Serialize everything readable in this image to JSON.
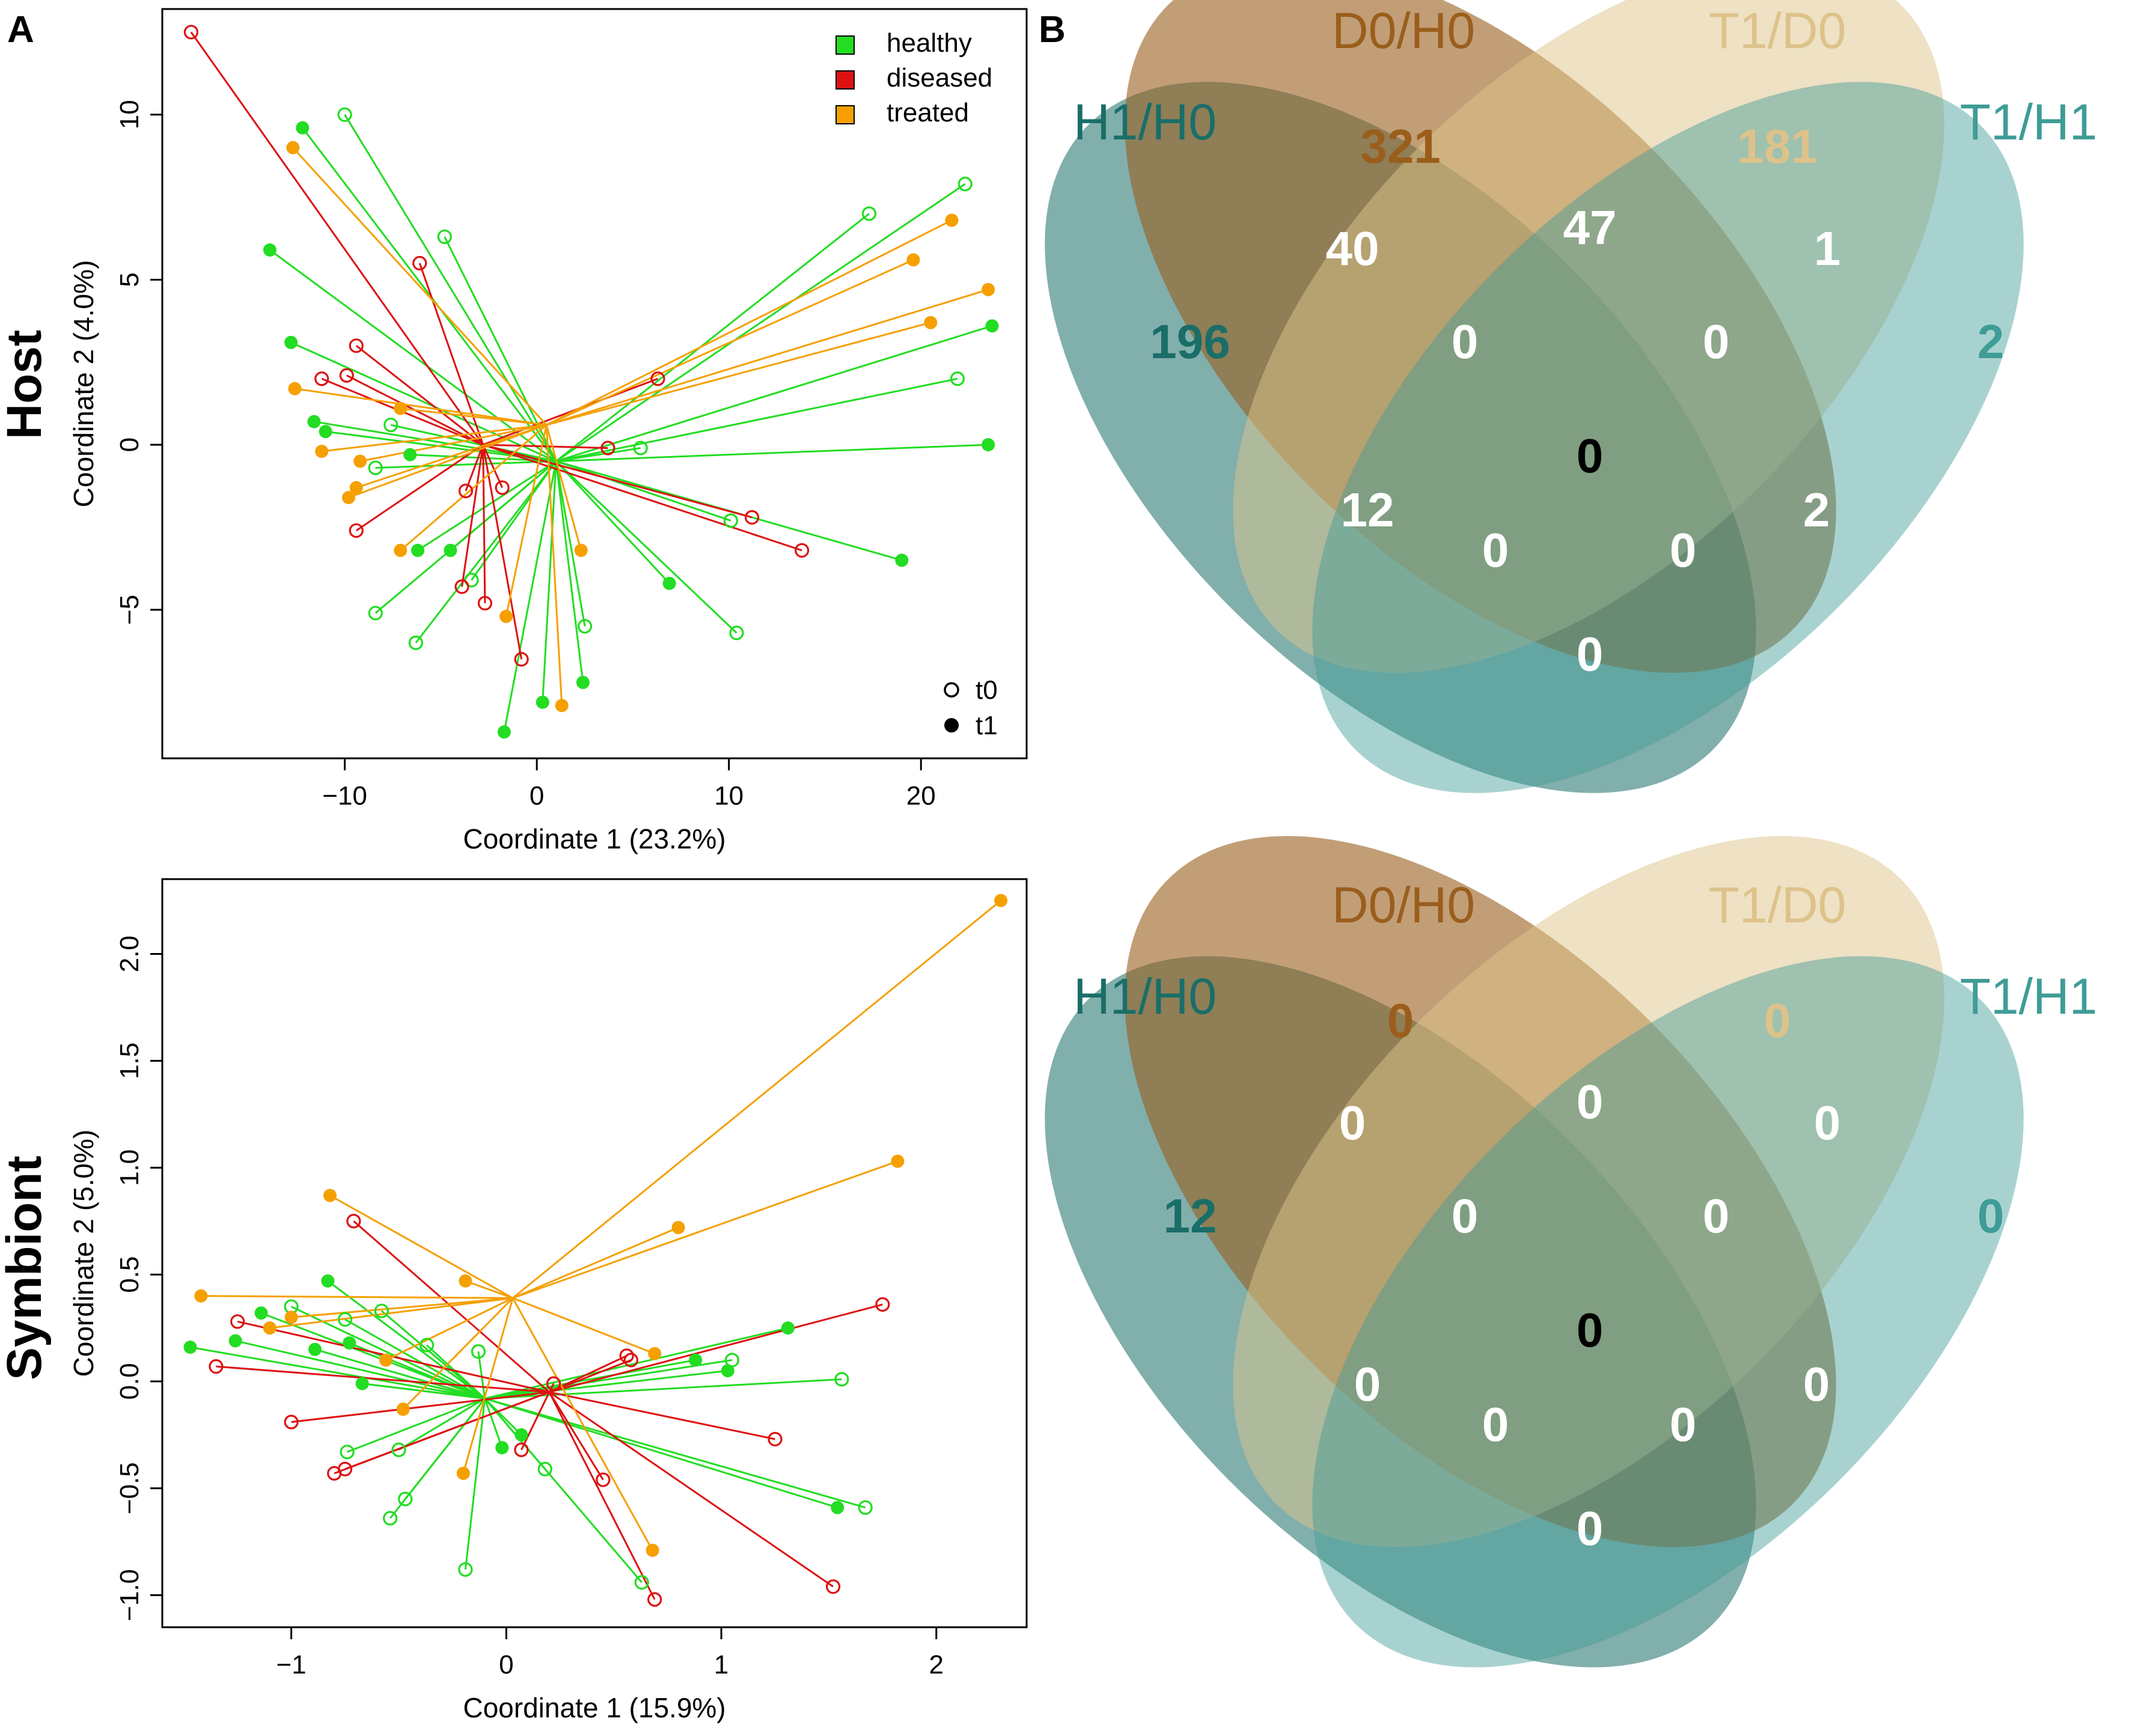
{
  "panel_labels": {
    "a": "A",
    "b": "B"
  },
  "row_labels": {
    "host": "Host",
    "symbiont": "Symbiont"
  },
  "colors": {
    "healthy": "#22dd22",
    "diseased": "#dd1111",
    "treated": "#f5a000",
    "H1/H0": "#1a6e68",
    "D0/H0": "#9a5e1c",
    "T1/D0": "#ddc38a",
    "T1/H1": "#3f9c96"
  },
  "chart_data": [
    {
      "type": "scatter",
      "panel": "A",
      "row": "Host",
      "xlabel": "Coordinate 1 (23.2%)",
      "ylabel": "Coordinate 2 (4.0%)",
      "xlim": [
        -19.5,
        25.5
      ],
      "ylim": [
        -9.5,
        13.2
      ],
      "xticks": [
        -10,
        0,
        10,
        20
      ],
      "xtick_labels": [
        "−10",
        "0",
        "10",
        "20"
      ],
      "yticks": [
        -5,
        0,
        5,
        10
      ],
      "ytick_labels": [
        "−5",
        "0",
        "5",
        "10"
      ],
      "grid": false,
      "legend_groups": {
        "position": "top-right",
        "entries": [
          {
            "key": "healthy",
            "label": "healthy"
          },
          {
            "key": "diseased",
            "label": "diseased"
          },
          {
            "key": "treated",
            "label": "treated"
          }
        ]
      },
      "legend_time": {
        "position": "bottom-right",
        "entries": [
          {
            "key": "t0",
            "label": "t0",
            "filled": false
          },
          {
            "key": "t1",
            "label": "t1",
            "filled": true
          }
        ]
      },
      "groups": [
        {
          "key": "healthy",
          "label": "healthy",
          "centroid": [
            1.0,
            -0.5
          ],
          "points": [
            {
              "x": -10.0,
              "y": 10.0,
              "t": "t0"
            },
            {
              "x": -4.8,
              "y": 6.3,
              "t": "t0"
            },
            {
              "x": 17.3,
              "y": 7.0,
              "t": "t0"
            },
            {
              "x": 22.3,
              "y": 7.9,
              "t": "t0"
            },
            {
              "x": 21.9,
              "y": 2.0,
              "t": "t0"
            },
            {
              "x": -7.6,
              "y": 0.6,
              "t": "t0"
            },
            {
              "x": 5.4,
              "y": -0.1,
              "t": "t0"
            },
            {
              "x": -8.4,
              "y": -0.7,
              "t": "t0"
            },
            {
              "x": 10.1,
              "y": -2.3,
              "t": "t0"
            },
            {
              "x": -3.4,
              "y": -4.1,
              "t": "t0"
            },
            {
              "x": -8.4,
              "y": -5.1,
              "t": "t0"
            },
            {
              "x": -6.3,
              "y": -6.0,
              "t": "t0"
            },
            {
              "x": 2.5,
              "y": -5.5,
              "t": "t0"
            },
            {
              "x": 10.4,
              "y": -5.7,
              "t": "t0"
            },
            {
              "x": -12.2,
              "y": 9.6,
              "t": "t1"
            },
            {
              "x": -13.9,
              "y": 5.9,
              "t": "t1"
            },
            {
              "x": -12.8,
              "y": 3.1,
              "t": "t1"
            },
            {
              "x": -11.6,
              "y": 0.7,
              "t": "t1"
            },
            {
              "x": -11.0,
              "y": 0.4,
              "t": "t1"
            },
            {
              "x": -6.6,
              "y": -0.3,
              "t": "t1"
            },
            {
              "x": 23.7,
              "y": 3.6,
              "t": "t1"
            },
            {
              "x": 23.5,
              "y": 0.0,
              "t": "t1"
            },
            {
              "x": 19.0,
              "y": -3.5,
              "t": "t1"
            },
            {
              "x": 6.9,
              "y": -4.2,
              "t": "t1"
            },
            {
              "x": -6.2,
              "y": -3.2,
              "t": "t1"
            },
            {
              "x": -4.5,
              "y": -3.2,
              "t": "t1"
            },
            {
              "x": 0.3,
              "y": -7.8,
              "t": "t1"
            },
            {
              "x": 2.4,
              "y": -7.2,
              "t": "t1"
            },
            {
              "x": -1.7,
              "y": -8.7,
              "t": "t1"
            }
          ]
        },
        {
          "key": "diseased",
          "label": "diseased",
          "centroid": [
            -2.8,
            0.0
          ],
          "points": [
            {
              "x": -18.0,
              "y": 12.5,
              "t": "t0"
            },
            {
              "x": -6.1,
              "y": 5.5,
              "t": "t0"
            },
            {
              "x": -9.4,
              "y": 3.0,
              "t": "t0"
            },
            {
              "x": -11.2,
              "y": 2.0,
              "t": "t0"
            },
            {
              "x": -9.9,
              "y": 2.1,
              "t": "t0"
            },
            {
              "x": 6.3,
              "y": 2.0,
              "t": "t0"
            },
            {
              "x": 3.7,
              "y": -0.1,
              "t": "t0"
            },
            {
              "x": -3.7,
              "y": -1.4,
              "t": "t0"
            },
            {
              "x": -1.8,
              "y": -1.3,
              "t": "t0"
            },
            {
              "x": -9.4,
              "y": -2.6,
              "t": "t0"
            },
            {
              "x": 11.2,
              "y": -2.2,
              "t": "t0"
            },
            {
              "x": 13.8,
              "y": -3.2,
              "t": "t0"
            },
            {
              "x": -3.9,
              "y": -4.3,
              "t": "t0"
            },
            {
              "x": -2.7,
              "y": -4.8,
              "t": "t0"
            },
            {
              "x": -0.8,
              "y": -6.5,
              "t": "t0"
            }
          ]
        },
        {
          "key": "treated",
          "label": "treated",
          "centroid": [
            0.5,
            0.6
          ],
          "points": [
            {
              "x": -12.7,
              "y": 9.0,
              "t": "t1"
            },
            {
              "x": 21.6,
              "y": 6.8,
              "t": "t1"
            },
            {
              "x": 19.6,
              "y": 5.6,
              "t": "t1"
            },
            {
              "x": 23.5,
              "y": 4.7,
              "t": "t1"
            },
            {
              "x": 20.5,
              "y": 3.7,
              "t": "t1"
            },
            {
              "x": -12.6,
              "y": 1.7,
              "t": "t1"
            },
            {
              "x": -7.1,
              "y": 1.1,
              "t": "t1"
            },
            {
              "x": -11.2,
              "y": -0.2,
              "t": "t1"
            },
            {
              "x": -9.2,
              "y": -0.5,
              "t": "t1"
            },
            {
              "x": -9.4,
              "y": -1.3,
              "t": "t1"
            },
            {
              "x": -9.8,
              "y": -1.6,
              "t": "t1"
            },
            {
              "x": -7.1,
              "y": -3.2,
              "t": "t1"
            },
            {
              "x": 2.3,
              "y": -3.2,
              "t": "t1"
            },
            {
              "x": -1.6,
              "y": -5.2,
              "t": "t1"
            },
            {
              "x": 1.3,
              "y": -7.9,
              "t": "t1"
            }
          ]
        }
      ]
    },
    {
      "type": "scatter",
      "panel": "A",
      "row": "Symbiont",
      "xlabel": "Coordinate 1 (15.9%)",
      "ylabel": "Coordinate 2 (5.0%)",
      "xlim": [
        -1.6,
        2.42
      ],
      "ylim": [
        -1.15,
        2.35
      ],
      "xticks": [
        -1,
        0,
        1,
        2
      ],
      "xtick_labels": [
        "−1",
        "0",
        "1",
        "2"
      ],
      "yticks": [
        -1.0,
        -0.5,
        0.0,
        0.5,
        1.0,
        1.5,
        2.0
      ],
      "ytick_labels": [
        "−1.0",
        "−0.5",
        "0.0",
        "0.5",
        "1.0",
        "1.5",
        "2.0"
      ],
      "grid": false,
      "groups": [
        {
          "key": "healthy",
          "label": "healthy",
          "centroid": [
            -0.1,
            -0.08
          ],
          "points": [
            {
              "x": -1.0,
              "y": 0.35,
              "t": "t0"
            },
            {
              "x": -0.75,
              "y": 0.29,
              "t": "t0"
            },
            {
              "x": -0.58,
              "y": 0.33,
              "t": "t0"
            },
            {
              "x": -0.37,
              "y": 0.17,
              "t": "t0"
            },
            {
              "x": -0.13,
              "y": 0.14,
              "t": "t0"
            },
            {
              "x": -0.74,
              "y": -0.33,
              "t": "t0"
            },
            {
              "x": -0.5,
              "y": -0.32,
              "t": "t0"
            },
            {
              "x": -0.47,
              "y": -0.55,
              "t": "t0"
            },
            {
              "x": -0.54,
              "y": -0.64,
              "t": "t0"
            },
            {
              "x": -0.19,
              "y": -0.88,
              "t": "t0"
            },
            {
              "x": 0.18,
              "y": -0.41,
              "t": "t0"
            },
            {
              "x": 0.63,
              "y": -0.94,
              "t": "t0"
            },
            {
              "x": 1.05,
              "y": 0.1,
              "t": "t0"
            },
            {
              "x": 1.56,
              "y": 0.01,
              "t": "t0"
            },
            {
              "x": 1.67,
              "y": -0.59,
              "t": "t0"
            },
            {
              "x": -0.83,
              "y": 0.47,
              "t": "t1"
            },
            {
              "x": -1.14,
              "y": 0.32,
              "t": "t1"
            },
            {
              "x": -1.47,
              "y": 0.16,
              "t": "t1"
            },
            {
              "x": -1.26,
              "y": 0.19,
              "t": "t1"
            },
            {
              "x": -0.89,
              "y": 0.15,
              "t": "t1"
            },
            {
              "x": -0.73,
              "y": 0.18,
              "t": "t1"
            },
            {
              "x": -0.67,
              "y": -0.01,
              "t": "t1"
            },
            {
              "x": 0.07,
              "y": -0.25,
              "t": "t1"
            },
            {
              "x": -0.02,
              "y": -0.31,
              "t": "t1"
            },
            {
              "x": 0.88,
              "y": 0.1,
              "t": "t1"
            },
            {
              "x": 1.03,
              "y": 0.05,
              "t": "t1"
            },
            {
              "x": 1.31,
              "y": 0.25,
              "t": "t1"
            },
            {
              "x": 1.54,
              "y": -0.59,
              "t": "t1"
            }
          ]
        },
        {
          "key": "diseased",
          "label": "diseased",
          "centroid": [
            0.2,
            -0.05
          ],
          "points": [
            {
              "x": -0.71,
              "y": 0.75,
              "t": "t0"
            },
            {
              "x": -1.25,
              "y": 0.28,
              "t": "t0"
            },
            {
              "x": -1.35,
              "y": 0.07,
              "t": "t0"
            },
            {
              "x": -1.0,
              "y": -0.19,
              "t": "t0"
            },
            {
              "x": -0.8,
              "y": -0.43,
              "t": "t0"
            },
            {
              "x": -0.75,
              "y": -0.41,
              "t": "t0"
            },
            {
              "x": 0.07,
              "y": -0.32,
              "t": "t0"
            },
            {
              "x": 0.22,
              "y": -0.01,
              "t": "t0"
            },
            {
              "x": 0.56,
              "y": 0.12,
              "t": "t0"
            },
            {
              "x": 0.58,
              "y": 0.1,
              "t": "t0"
            },
            {
              "x": 1.75,
              "y": 0.36,
              "t": "t0"
            },
            {
              "x": 1.25,
              "y": -0.27,
              "t": "t0"
            },
            {
              "x": 0.45,
              "y": -0.46,
              "t": "t0"
            },
            {
              "x": 0.69,
              "y": -1.02,
              "t": "t0"
            },
            {
              "x": 1.52,
              "y": -0.96,
              "t": "t0"
            }
          ]
        },
        {
          "key": "treated",
          "label": "treated",
          "centroid": [
            0.03,
            0.39
          ],
          "points": [
            {
              "x": 2.3,
              "y": 2.25,
              "t": "t1"
            },
            {
              "x": 1.82,
              "y": 1.03,
              "t": "t1"
            },
            {
              "x": 0.8,
              "y": 0.72,
              "t": "t1"
            },
            {
              "x": -0.82,
              "y": 0.87,
              "t": "t1"
            },
            {
              "x": -0.19,
              "y": 0.47,
              "t": "t1"
            },
            {
              "x": -1.42,
              "y": 0.4,
              "t": "t1"
            },
            {
              "x": -1.0,
              "y": 0.3,
              "t": "t1"
            },
            {
              "x": -1.1,
              "y": 0.25,
              "t": "t1"
            },
            {
              "x": -0.56,
              "y": 0.1,
              "t": "t1"
            },
            {
              "x": -0.48,
              "y": -0.13,
              "t": "t1"
            },
            {
              "x": -0.2,
              "y": -0.43,
              "t": "t1"
            },
            {
              "x": 0.69,
              "y": 0.13,
              "t": "t1"
            },
            {
              "x": 0.68,
              "y": -0.79,
              "t": "t1"
            }
          ]
        }
      ]
    }
  ],
  "venn": {
    "sets": [
      "H1/H0",
      "D0/H0",
      "T1/D0",
      "T1/H1"
    ],
    "host": {
      "labels": {
        "H1/H0": "H1/H0",
        "D0/H0": "D0/H0",
        "T1/D0": "T1/D0",
        "T1/H1": "T1/H1"
      },
      "counts": {
        "H1/H0 only": "196",
        "D0/H0 only": "321",
        "T1/D0 only": "181",
        "T1/H1 only": "2",
        "H1/H0 & D0/H0": "40",
        "D0/H0 & T1/D0": "47",
        "T1/D0 & T1/H1": "1",
        "H1/H0 & T1/D0": "12",
        "D0/H0 & T1/H1": "2",
        "H1/H0 & T1/H1": "0",
        "H1/H0 & D0/H0 & T1/D0": "0",
        "D0/H0 & T1/D0 & T1/H1": "0",
        "H1/H0 & T1/D0 & T1/H1": "0",
        "H1/H0 & D0/H0 & T1/H1": "0",
        "all": "0"
      }
    },
    "symbiont": {
      "labels": {
        "H1/H0": "H1/H0",
        "D0/H0": "D0/H0",
        "T1/D0": "T1/D0",
        "T1/H1": "T1/H1"
      },
      "counts": {
        "H1/H0 only": "12",
        "D0/H0 only": "0",
        "T1/D0 only": "0",
        "T1/H1 only": "0",
        "H1/H0 & D0/H0": "0",
        "D0/H0 & T1/D0": "0",
        "T1/D0 & T1/H1": "0",
        "H1/H0 & T1/D0": "0",
        "D0/H0 & T1/H1": "0",
        "H1/H0 & T1/H1": "0",
        "H1/H0 & D0/H0 & T1/D0": "0",
        "D0/H0 & T1/D0 & T1/H1": "0",
        "H1/H0 & T1/D0 & T1/H1": "0",
        "H1/H0 & D0/H0 & T1/H1": "0",
        "all": "0"
      }
    }
  }
}
